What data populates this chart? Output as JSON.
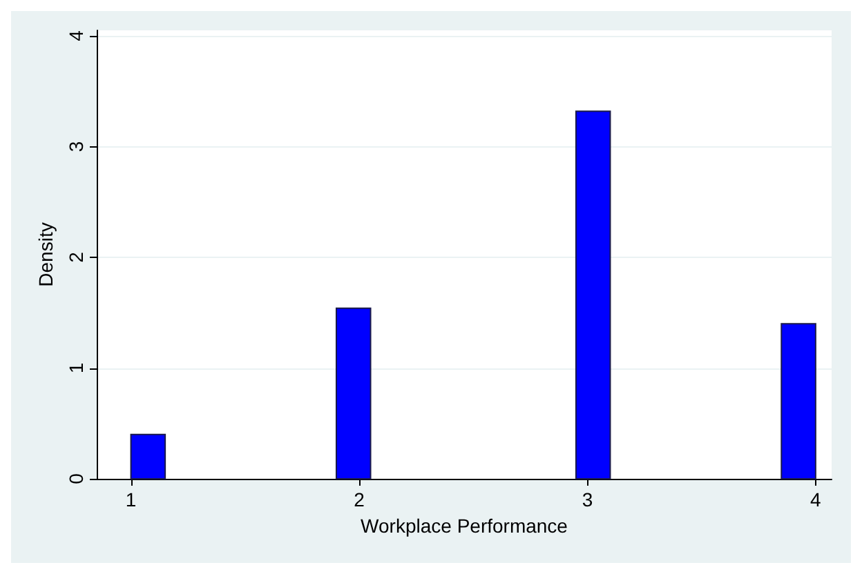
{
  "chart_data": {
    "type": "histogram",
    "xlabel": "Workplace Performance",
    "ylabel": "Density",
    "bins": [
      1,
      1.15,
      1.3,
      1.45,
      1.6,
      1.75,
      1.9,
      2.05,
      2.2,
      2.35,
      2.5,
      2.65,
      2.8,
      2.95,
      3.1,
      3.25,
      3.4,
      3.55,
      3.7,
      3.85,
      4
    ],
    "values": [
      0.4,
      0,
      0,
      0,
      0,
      0,
      1.54,
      0,
      0,
      0,
      0,
      0,
      0,
      3.32,
      0,
      0,
      0,
      0,
      0,
      1.4
    ],
    "color": "#0000ff",
    "xlim": [
      0.85,
      4.07
    ],
    "xticks": [
      1,
      2,
      3,
      4
    ],
    "ylim": [
      0,
      4.05
    ],
    "yticks": [
      0,
      1,
      2,
      3,
      4
    ],
    "grid": "y"
  }
}
